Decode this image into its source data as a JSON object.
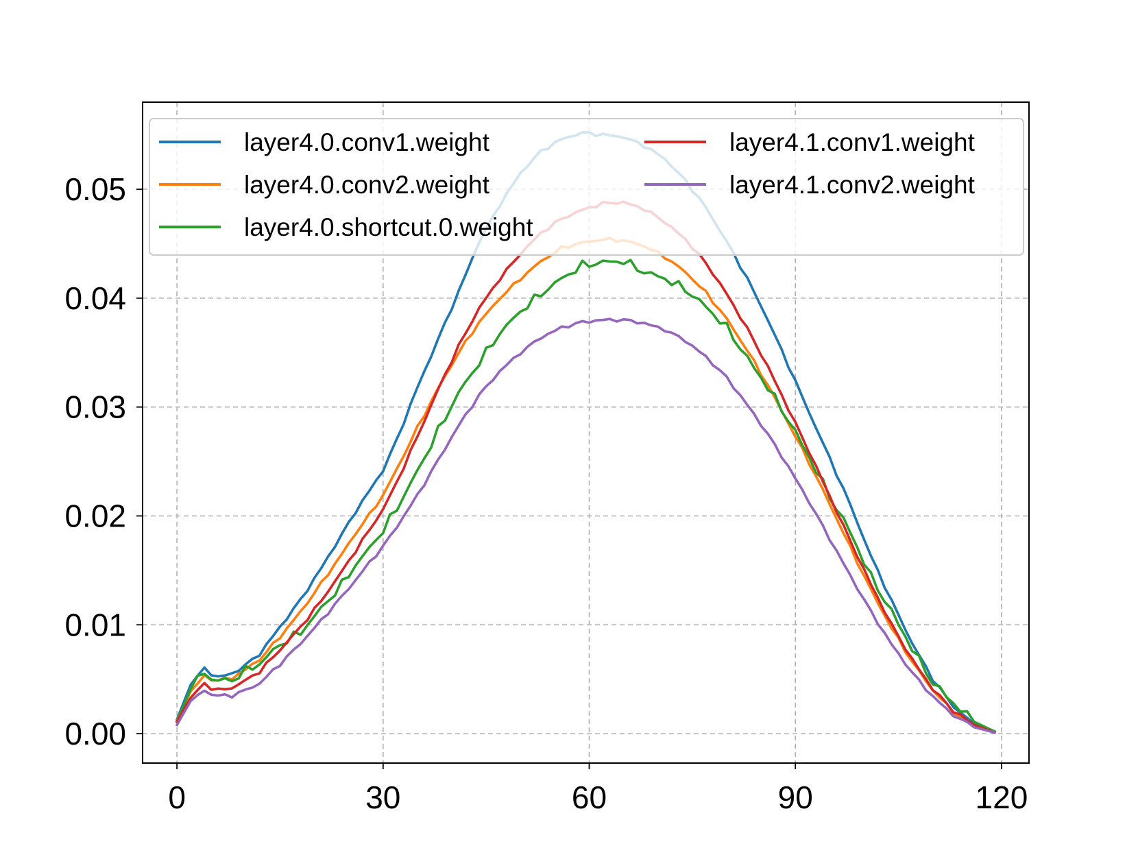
{
  "chart_data": {
    "type": "line",
    "title": "",
    "xlabel": "",
    "ylabel": "",
    "xlim": [
      -5,
      124
    ],
    "ylim": [
      -0.0027,
      0.058
    ],
    "xticks": [
      0,
      30,
      60,
      90,
      120
    ],
    "xtick_labels": [
      "0",
      "30",
      "60",
      "90",
      "120"
    ],
    "yticks": [
      0.0,
      0.01,
      0.02,
      0.03,
      0.04,
      0.05
    ],
    "ytick_labels": [
      "0.00",
      "0.01",
      "0.02",
      "0.03",
      "0.04",
      "0.05"
    ],
    "grid": true,
    "legend": {
      "placement": "upper",
      "columns": 2
    },
    "series": [
      {
        "name": "layer4.0.conv1.weight",
        "color": "#1f77b4",
        "x": [
          0,
          2,
          4,
          5,
          6,
          8,
          10,
          12,
          15,
          18,
          21,
          24,
          26,
          28,
          30,
          32,
          35,
          38,
          41,
          44,
          47,
          50,
          53,
          56,
          59,
          62,
          65,
          68,
          71,
          74,
          77,
          80,
          83,
          86,
          89,
          92,
          95,
          98,
          101,
          104,
          107,
          110,
          113,
          116,
          119
        ],
        "y": [
          0.0013,
          0.0045,
          0.006,
          0.0055,
          0.0052,
          0.0055,
          0.0063,
          0.0073,
          0.0098,
          0.0123,
          0.0152,
          0.0183,
          0.0204,
          0.0223,
          0.0242,
          0.027,
          0.0318,
          0.0362,
          0.0406,
          0.0452,
          0.0486,
          0.0515,
          0.0535,
          0.0546,
          0.0552,
          0.055,
          0.0548,
          0.054,
          0.0528,
          0.0508,
          0.0483,
          0.0452,
          0.0418,
          0.038,
          0.0338,
          0.0295,
          0.0253,
          0.021,
          0.0163,
          0.0122,
          0.0083,
          0.005,
          0.0025,
          0.0009,
          0.0002
        ]
      },
      {
        "name": "layer4.0.conv2.weight",
        "color": "#ff7f0e",
        "x": [
          0,
          2,
          4,
          5,
          6,
          8,
          10,
          12,
          15,
          18,
          21,
          24,
          26,
          28,
          30,
          32,
          35,
          38,
          41,
          44,
          47,
          50,
          53,
          56,
          59,
          62,
          65,
          68,
          71,
          74,
          77,
          80,
          83,
          86,
          89,
          92,
          95,
          98,
          101,
          104,
          107,
          110,
          113,
          116,
          119
        ],
        "y": [
          0.0012,
          0.0039,
          0.0053,
          0.005,
          0.0049,
          0.0051,
          0.0059,
          0.0068,
          0.0089,
          0.0112,
          0.0138,
          0.0165,
          0.0184,
          0.0201,
          0.0219,
          0.0243,
          0.0281,
          0.0317,
          0.035,
          0.0378,
          0.04,
          0.0418,
          0.0434,
          0.0446,
          0.0451,
          0.0454,
          0.0453,
          0.0448,
          0.0438,
          0.0424,
          0.0405,
          0.0381,
          0.0352,
          0.032,
          0.0285,
          0.0249,
          0.0211,
          0.0171,
          0.0132,
          0.0097,
          0.0066,
          0.004,
          0.002,
          0.0007,
          0.0001
        ]
      },
      {
        "name": "layer4.0.shortcut.0.weight",
        "color": "#2ca02c",
        "x": [
          0,
          2,
          4,
          5,
          6,
          8,
          10,
          12,
          15,
          18,
          21,
          24,
          26,
          28,
          30,
          32,
          35,
          38,
          41,
          44,
          47,
          50,
          53,
          56,
          59,
          62,
          65,
          68,
          71,
          74,
          77,
          80,
          83,
          86,
          89,
          92,
          95,
          98,
          101,
          104,
          107,
          110,
          113,
          116,
          119
        ],
        "y": [
          0.0011,
          0.0041,
          0.0057,
          0.005,
          0.0049,
          0.0049,
          0.0058,
          0.0064,
          0.0082,
          0.0093,
          0.0115,
          0.0137,
          0.0155,
          0.017,
          0.0187,
          0.0207,
          0.0241,
          0.0278,
          0.0313,
          0.0341,
          0.0368,
          0.0388,
          0.0404,
          0.0418,
          0.043,
          0.0433,
          0.0434,
          0.0424,
          0.0418,
          0.0408,
          0.0392,
          0.0373,
          0.0345,
          0.0318,
          0.0288,
          0.0254,
          0.0218,
          0.0185,
          0.0144,
          0.0112,
          0.0078,
          0.0047,
          0.0028,
          0.0011,
          0.0002
        ]
      },
      {
        "name": "layer4.1.conv1.weight",
        "color": "#d62728",
        "x": [
          0,
          2,
          4,
          5,
          6,
          8,
          10,
          12,
          15,
          18,
          21,
          24,
          26,
          28,
          30,
          32,
          35,
          38,
          41,
          44,
          47,
          50,
          53,
          56,
          59,
          62,
          65,
          68,
          71,
          74,
          77,
          80,
          83,
          86,
          89,
          92,
          95,
          98,
          101,
          104,
          107,
          110,
          113,
          116,
          119
        ],
        "y": [
          0.0011,
          0.0033,
          0.0046,
          0.0042,
          0.004,
          0.0042,
          0.0049,
          0.0057,
          0.0077,
          0.0098,
          0.0122,
          0.0149,
          0.0168,
          0.0187,
          0.0206,
          0.0231,
          0.0273,
          0.0316,
          0.0356,
          0.0391,
          0.0418,
          0.0441,
          0.046,
          0.0473,
          0.0481,
          0.0487,
          0.0488,
          0.0482,
          0.047,
          0.0454,
          0.0432,
          0.0404,
          0.0372,
          0.0337,
          0.0298,
          0.0259,
          0.0218,
          0.0177,
          0.0137,
          0.01,
          0.0068,
          0.0041,
          0.0021,
          0.0008,
          0.0001
        ]
      },
      {
        "name": "layer4.1.conv2.weight",
        "color": "#9467bd",
        "x": [
          0,
          2,
          4,
          5,
          6,
          8,
          10,
          12,
          15,
          18,
          21,
          24,
          26,
          28,
          30,
          32,
          35,
          38,
          41,
          44,
          47,
          50,
          53,
          56,
          59,
          62,
          65,
          68,
          71,
          74,
          77,
          80,
          83,
          86,
          89,
          92,
          95,
          98,
          101,
          104,
          107,
          110,
          113,
          116,
          119
        ],
        "y": [
          0.0008,
          0.003,
          0.004,
          0.0036,
          0.0035,
          0.0035,
          0.004,
          0.0046,
          0.0064,
          0.0083,
          0.0104,
          0.0126,
          0.0141,
          0.0157,
          0.0172,
          0.019,
          0.0219,
          0.0251,
          0.0283,
          0.0311,
          0.0333,
          0.035,
          0.0364,
          0.0373,
          0.0378,
          0.038,
          0.038,
          0.0377,
          0.0371,
          0.0361,
          0.0346,
          0.0327,
          0.0302,
          0.0275,
          0.0245,
          0.0213,
          0.0179,
          0.0145,
          0.0112,
          0.0082,
          0.0056,
          0.0034,
          0.0017,
          0.0006,
          0.0001
        ]
      }
    ]
  }
}
